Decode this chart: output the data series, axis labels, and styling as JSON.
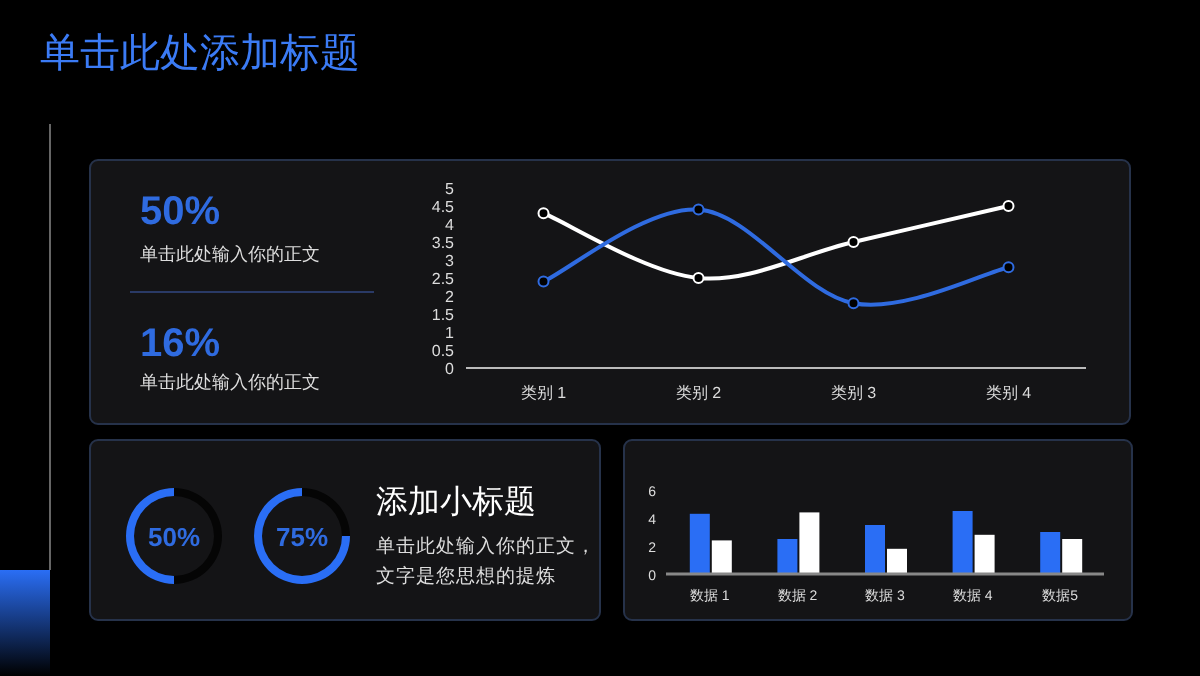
{
  "chart_data": [
    {
      "type": "other",
      "title": "单击此处添加标题",
      "annotations": [
        "50%",
        "单击此处输入你的正文",
        "16%",
        "单击此处输入你的正文"
      ]
    },
    {
      "type": "line",
      "categories": [
        "类别 1",
        "类别 2",
        "类别 3",
        "类别 4"
      ],
      "ylim": [
        0,
        5
      ],
      "yticks": [
        0,
        0.5,
        1,
        1.5,
        2,
        2.5,
        3,
        3.5,
        4,
        4.5,
        5
      ],
      "grid": false,
      "marker": "circle",
      "line_style": "solid",
      "series": [
        {
          "color": "#ffffff",
          "values": [
            4.3,
            2.5,
            3.5,
            4.5
          ]
        },
        {
          "color": "#2f6be0",
          "values": [
            2.4,
            4.4,
            1.8,
            2.8
          ]
        }
      ]
    },
    {
      "type": "donut",
      "categories": [
        null,
        null
      ],
      "values": [
        50,
        50
      ],
      "colors": [
        "#2a6ef5",
        "#050505"
      ],
      "annotations": [
        "50%"
      ]
    },
    {
      "type": "donut",
      "categories": [
        null,
        null
      ],
      "values": [
        75,
        25
      ],
      "colors": [
        "#2a6ef5",
        "#050505"
      ],
      "annotations": [
        "75%"
      ]
    },
    {
      "type": "other",
      "title": "添加小标题",
      "annotations": [
        "单击此处输入你的正文，",
        "文字是您思想的提炼"
      ]
    },
    {
      "type": "bar",
      "categories": [
        "数据 1",
        "数据 2",
        "数据 3",
        "数据 4",
        "数据5"
      ],
      "ylim": [
        0,
        6
      ],
      "yticks": [
        0,
        2,
        4,
        6
      ],
      "grid": false,
      "series": [
        {
          "color": "#2a6ef5",
          "values": [
            4.3,
            2.5,
            3.5,
            4.5,
            3
          ]
        },
        {
          "color": "#ffffff",
          "values": [
            2.4,
            4.4,
            1.8,
            2.8,
            2.5
          ]
        }
      ]
    }
  ]
}
